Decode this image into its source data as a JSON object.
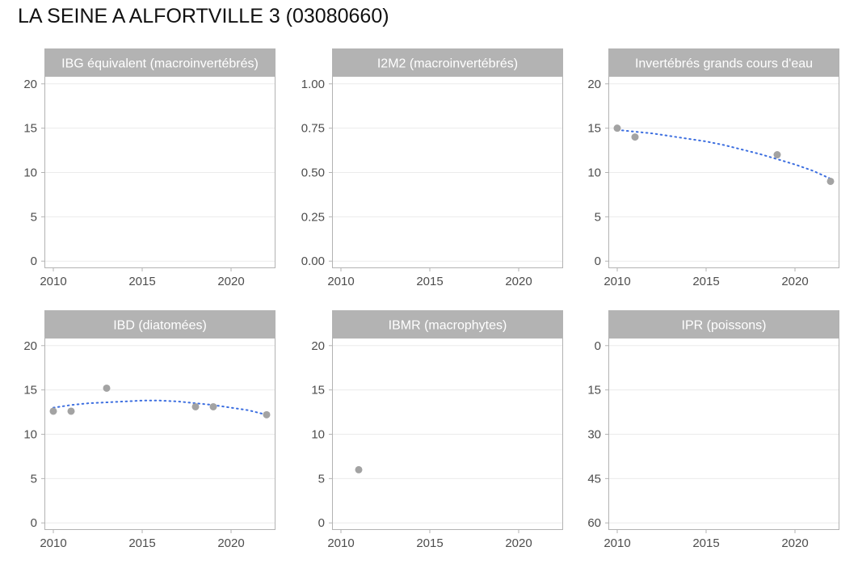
{
  "title": "LA SEINE A ALFORTVILLE 3 (03080660)",
  "colors": {
    "point": "#a3a3a3",
    "trend": "#3d6fe0",
    "strip": "#b3b3b3",
    "grid": "#ebebeb",
    "frame": "#b3b3b3",
    "tick_text": "#4d4d4d"
  },
  "chart_data": [
    {
      "type": "scatter",
      "title": "IBG équivalent (macroinvertébrés)",
      "xlim": [
        2009.5,
        2022.5
      ],
      "ylim": [
        -0.8,
        20.8
      ],
      "x_ticks": [
        2010,
        2015,
        2020
      ],
      "y_ticks": [
        0,
        5,
        10,
        15,
        20
      ],
      "y_tick_labels": [
        "0",
        "5",
        "10",
        "15",
        "20"
      ],
      "y_reversed": false,
      "points": [],
      "trend": []
    },
    {
      "type": "scatter",
      "title": "I2M2 (macroinvertébrés)",
      "xlim": [
        2009.5,
        2022.5
      ],
      "ylim": [
        -0.04,
        1.04
      ],
      "x_ticks": [
        2010,
        2015,
        2020
      ],
      "y_ticks": [
        0,
        0.25,
        0.5,
        0.75,
        1
      ],
      "y_tick_labels": [
        "0.00",
        "0.25",
        "0.50",
        "0.75",
        "1.00"
      ],
      "y_reversed": false,
      "points": [],
      "trend": []
    },
    {
      "type": "scatter",
      "title": "Invertébrés grands cours d'eau",
      "xlim": [
        2009.5,
        2022.5
      ],
      "ylim": [
        -0.8,
        20.8
      ],
      "x_ticks": [
        2010,
        2015,
        2020
      ],
      "y_ticks": [
        0,
        5,
        10,
        15,
        20
      ],
      "y_tick_labels": [
        "0",
        "5",
        "10",
        "15",
        "20"
      ],
      "y_reversed": false,
      "points": [
        [
          2010,
          15
        ],
        [
          2011,
          14
        ],
        [
          2019,
          12
        ],
        [
          2022,
          9
        ]
      ],
      "trend": [
        [
          2010,
          14.8
        ],
        [
          2011,
          14.6
        ],
        [
          2012,
          14.4
        ],
        [
          2013,
          14.1
        ],
        [
          2014,
          13.8
        ],
        [
          2015,
          13.5
        ],
        [
          2016,
          13.1
        ],
        [
          2017,
          12.6
        ],
        [
          2018,
          12.1
        ],
        [
          2019,
          11.5
        ],
        [
          2020,
          10.9
        ],
        [
          2021,
          10.2
        ],
        [
          2022,
          9.3
        ]
      ]
    },
    {
      "type": "scatter",
      "title": "IBD (diatomées)",
      "xlim": [
        2009.5,
        2022.5
      ],
      "ylim": [
        -0.8,
        20.8
      ],
      "x_ticks": [
        2010,
        2015,
        2020
      ],
      "y_ticks": [
        0,
        5,
        10,
        15,
        20
      ],
      "y_tick_labels": [
        "0",
        "5",
        "10",
        "15",
        "20"
      ],
      "y_reversed": false,
      "points": [
        [
          2010,
          12.6
        ],
        [
          2011,
          12.6
        ],
        [
          2013,
          15.2
        ],
        [
          2018,
          13.1
        ],
        [
          2019,
          13.1
        ],
        [
          2022,
          12.2
        ]
      ],
      "trend": [
        [
          2010,
          13.0
        ],
        [
          2011,
          13.3
        ],
        [
          2012,
          13.5
        ],
        [
          2013,
          13.6
        ],
        [
          2014,
          13.7
        ],
        [
          2015,
          13.8
        ],
        [
          2016,
          13.8
        ],
        [
          2017,
          13.7
        ],
        [
          2018,
          13.5
        ],
        [
          2019,
          13.3
        ],
        [
          2020,
          13.0
        ],
        [
          2021,
          12.7
        ],
        [
          2022,
          12.2
        ]
      ]
    },
    {
      "type": "scatter",
      "title": "IBMR (macrophytes)",
      "xlim": [
        2009.5,
        2022.5
      ],
      "ylim": [
        -0.8,
        20.8
      ],
      "x_ticks": [
        2010,
        2015,
        2020
      ],
      "y_ticks": [
        0,
        5,
        10,
        15,
        20
      ],
      "y_tick_labels": [
        "0",
        "5",
        "10",
        "15",
        "20"
      ],
      "y_reversed": false,
      "points": [
        [
          2011,
          6
        ]
      ],
      "trend": []
    },
    {
      "type": "scatter",
      "title": "IPR (poissons)",
      "xlim": [
        2009.5,
        2022.5
      ],
      "ylim": [
        -2.4,
        62.4
      ],
      "x_ticks": [
        2010,
        2015,
        2020
      ],
      "y_ticks": [
        0,
        15,
        30,
        45,
        60
      ],
      "y_tick_labels": [
        "0",
        "15",
        "30",
        "45",
        "60"
      ],
      "y_reversed": true,
      "points": [],
      "trend": []
    }
  ]
}
